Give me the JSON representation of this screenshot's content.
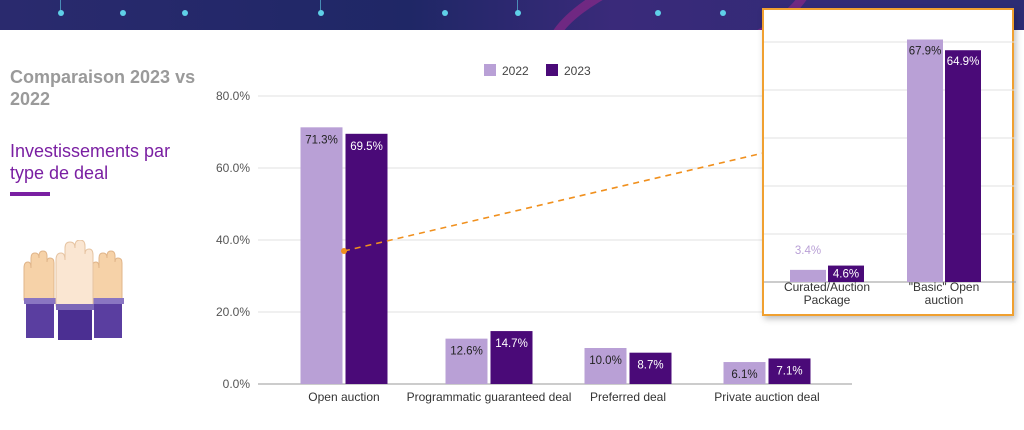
{
  "header": {
    "title": "Comparaison 2023 vs 2022",
    "subtitle": "Investissements par type de deal"
  },
  "colors": {
    "s2022": "#b9a0d6",
    "s2023": "#4a0a78",
    "accent": "#7a1fa2",
    "arrow": "#f0901e",
    "inset_border": "#f0a030"
  },
  "chart_data": [
    {
      "type": "bar",
      "categories": [
        "Open auction",
        "Programmatic guaranteed deal",
        "Preferred deal",
        "Private auction deal"
      ],
      "series": [
        {
          "name": "2022",
          "values": [
            71.3,
            12.6,
            10.0,
            6.1
          ],
          "labels": [
            "71.3%",
            "12.6%",
            "10.0%",
            "6.1%"
          ]
        },
        {
          "name": "2023",
          "values": [
            69.5,
            14.7,
            8.7,
            7.1
          ],
          "labels": [
            "69.5%",
            "14.7%",
            "8.7%",
            "7.1%"
          ]
        }
      ],
      "yticks": [
        "0.0%",
        "20.0%",
        "40.0%",
        "60.0%",
        "80.0%"
      ],
      "ytick_values": [
        0,
        20,
        40,
        60,
        80
      ],
      "ylim": [
        0,
        80
      ],
      "legend": "top-center",
      "grid": true
    },
    {
      "type": "bar",
      "categories": [
        "Curated/Auction Package",
        "\"Basic\" Open auction"
      ],
      "category_lines": [
        [
          "Curated/Auction",
          "Package"
        ],
        [
          "\"Basic\" Open",
          "auction"
        ]
      ],
      "series": [
        {
          "name": "2022",
          "values": [
            3.4,
            67.9
          ],
          "labels": [
            "3.4%",
            "67.9%"
          ]
        },
        {
          "name": "2023",
          "values": [
            4.6,
            64.9
          ],
          "labels": [
            "4.6%",
            "64.9%"
          ]
        }
      ],
      "ylim": [
        0,
        70
      ],
      "grid": true
    }
  ]
}
